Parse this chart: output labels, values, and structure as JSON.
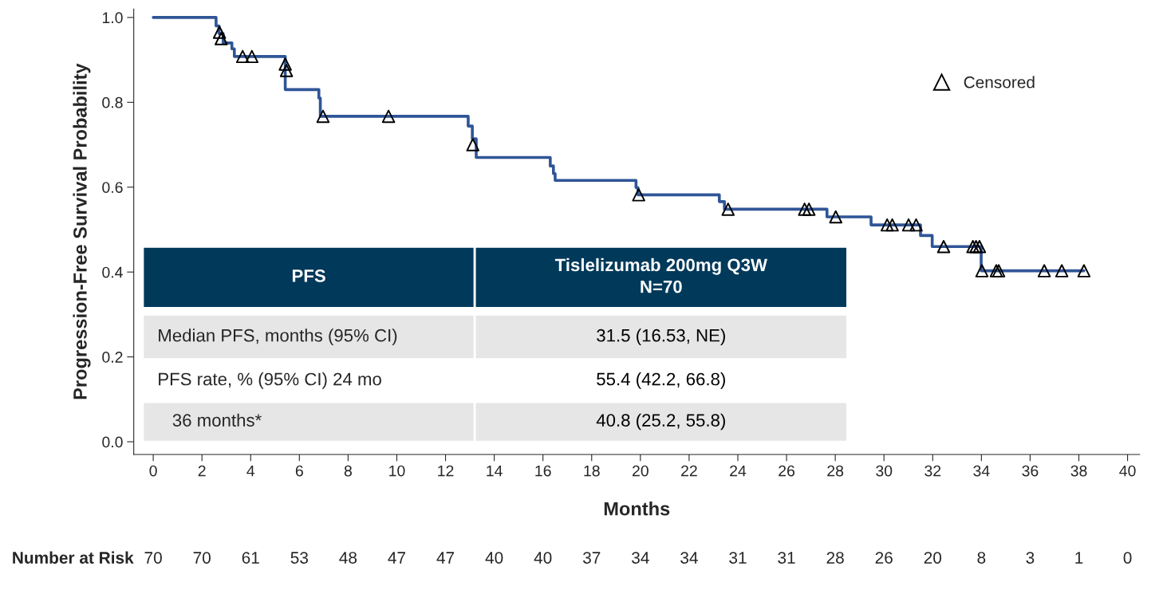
{
  "chart_data": {
    "type": "step",
    "xlabel": "Months",
    "ylabel": "Progression-Free Survival Probability",
    "xlim": [
      -0.8,
      40.5
    ],
    "ylim": [
      -0.03,
      1.02
    ],
    "xticks": [
      0,
      2,
      4,
      6,
      8,
      10,
      12,
      14,
      16,
      18,
      20,
      22,
      24,
      26,
      28,
      30,
      32,
      34,
      36,
      38,
      40
    ],
    "yticks": [
      {
        "value": 0,
        "label": "0.0"
      },
      0.2,
      0.4,
      0.6,
      0.8,
      {
        "value": 1,
        "label": "1.0"
      }
    ],
    "grid": false,
    "legend": "top right",
    "series": [
      {
        "color": "#2f5597",
        "marker": "none",
        "x": [
          0,
          2.58,
          2.7,
          2.87,
          3.23,
          3.33,
          5.42,
          6.8,
          6.86,
          12.93,
          13.1,
          13.26,
          16.3,
          16.43,
          16.5,
          19.82,
          19.9,
          23.24,
          23.45,
          27.66,
          29.47,
          31.5,
          31.98,
          33.99,
          38.21
        ],
        "values": [
          1.0,
          0.98,
          0.962,
          0.94,
          0.926,
          0.908,
          0.83,
          0.81,
          0.767,
          0.744,
          0.714,
          0.67,
          0.65,
          0.632,
          0.616,
          0.599,
          0.582,
          0.566,
          0.548,
          0.53,
          0.511,
          0.486,
          0.46,
          0.403,
          0.403
        ]
      },
      {
        "type": "scatter",
        "name": "Censored",
        "color": "#000000",
        "marker": "triangle",
        "x": [
          2.72,
          2.79,
          3.67,
          4.05,
          5.42,
          5.47,
          6.97,
          9.66,
          13.12,
          19.93,
          23.6,
          26.74,
          26.92,
          28.02,
          30.13,
          30.34,
          31.01,
          31.32,
          32.45,
          33.65,
          33.78,
          33.92,
          34.02,
          34.61,
          34.71,
          36.58,
          37.3,
          38.21
        ],
        "values": [
          0.965,
          0.95,
          0.908,
          0.908,
          0.89,
          0.875,
          0.767,
          0.767,
          0.7,
          0.582,
          0.548,
          0.548,
          0.548,
          0.53,
          0.511,
          0.511,
          0.511,
          0.511,
          0.46,
          0.46,
          0.46,
          0.46,
          0.403,
          0.403,
          0.403,
          0.403,
          0.403,
          0.403
        ]
      }
    ],
    "annotations": [
      "PFS",
      "Tislelizumab 200mg Q3W\nN=70",
      "Median PFS, months (95% CI)",
      "31.5 (16.53, NE)",
      "PFS rate, % (95% CI) 24 mo",
      "55.4 (42.2, 66.8)",
      "   36 months*",
      "40.8 (25.2, 55.8)",
      "Number at Risk",
      "70",
      "70",
      "61",
      "53",
      "48",
      "47",
      "47",
      "40",
      "40",
      "37",
      "34",
      "34",
      "31",
      "31",
      "28",
      "26",
      "20",
      "8",
      "3",
      "1",
      "0"
    ]
  }
}
